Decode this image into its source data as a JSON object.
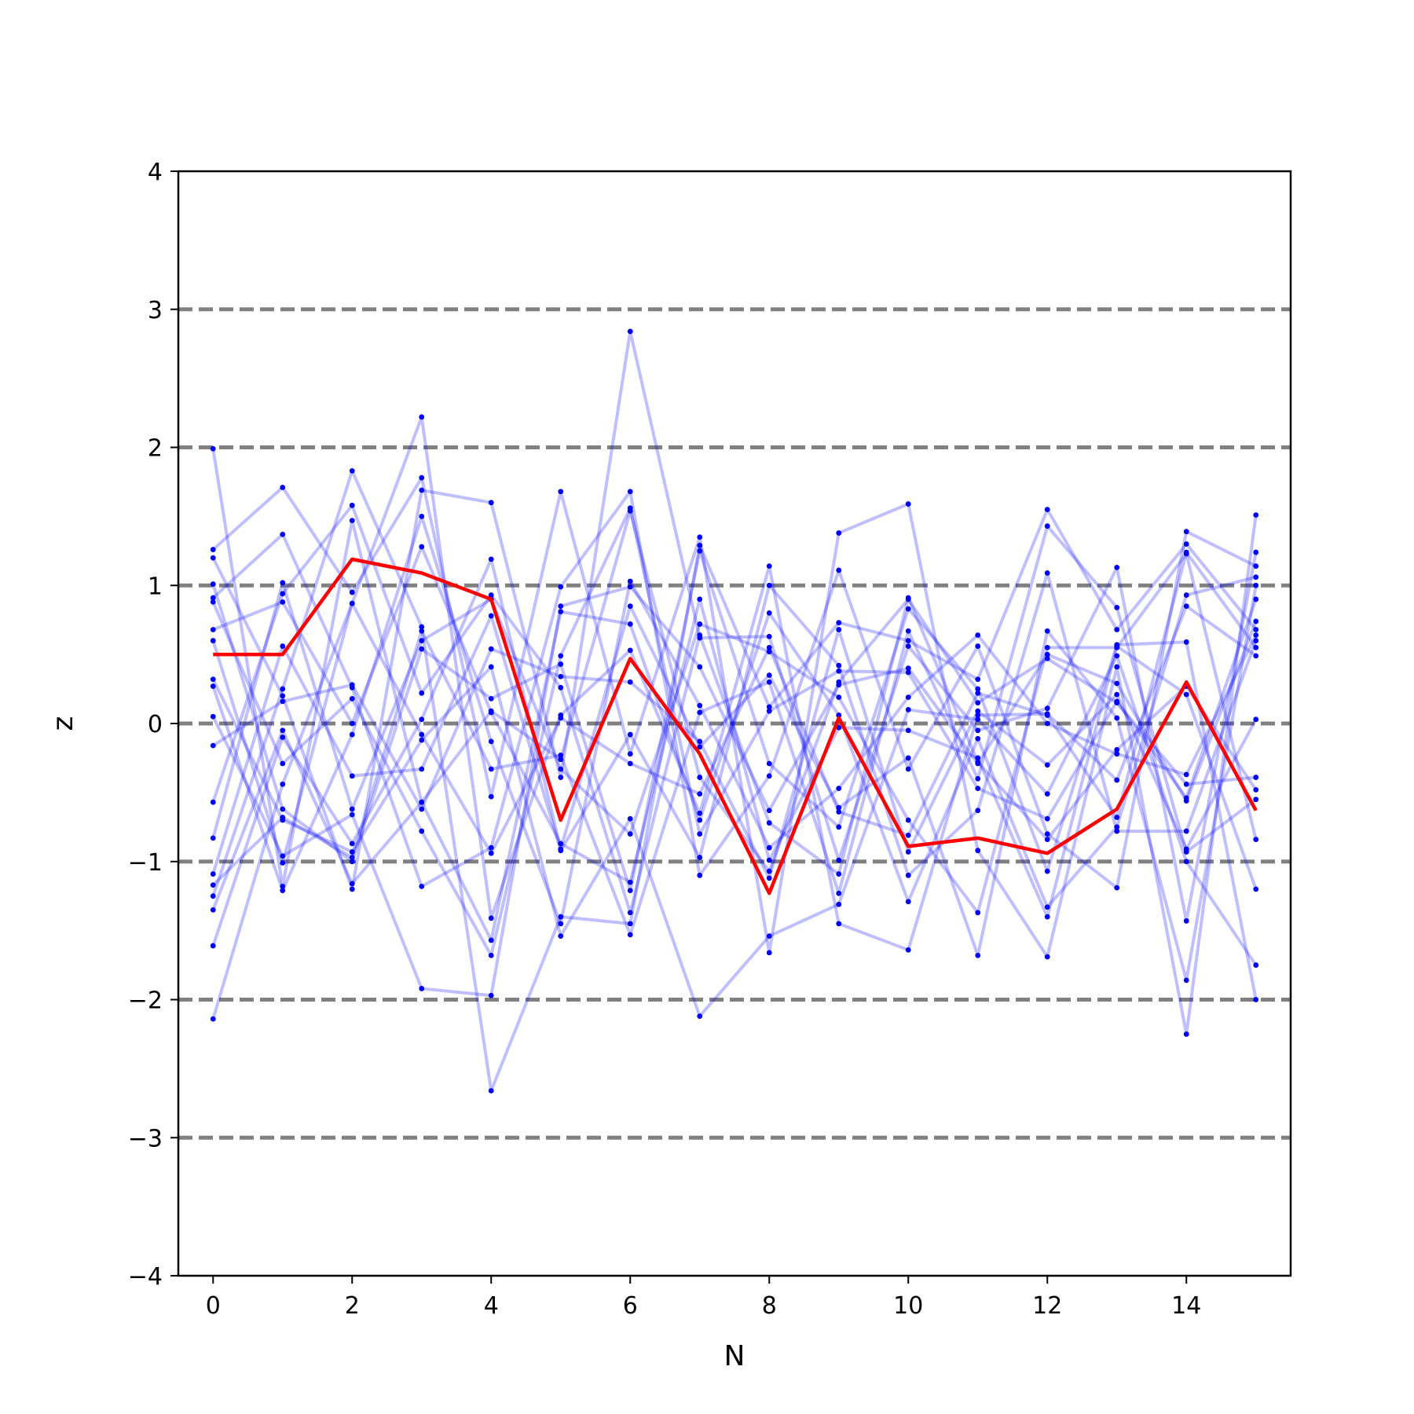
{
  "chart_data": {
    "type": "line",
    "title": "",
    "xlabel": "N",
    "ylabel": "z",
    "xlim": [
      -0.5,
      15.5
    ],
    "ylim": [
      -4,
      4
    ],
    "xticks": [
      "0",
      "2",
      "4",
      "6",
      "8",
      "10",
      "12",
      "14"
    ],
    "yticks": [
      "−4",
      "−3",
      "−2",
      "−1",
      "0",
      "1",
      "2",
      "3",
      "4"
    ],
    "reference_lines": [
      -3,
      -2,
      -1,
      0,
      1,
      2,
      3
    ],
    "grid": false,
    "legend": "none",
    "colors": {
      "traces": "#0000ff",
      "mean": "#ff0000",
      "reference": "#808080"
    },
    "x": [
      0,
      1,
      2,
      3,
      4,
      5,
      6,
      7,
      8,
      9,
      10,
      11,
      12,
      13,
      14,
      15
    ],
    "mean_series": [
      0.5,
      0.5,
      1.19,
      1.09,
      0.9,
      -0.7,
      0.47,
      -0.22,
      -1.23,
      0.04,
      -0.89,
      -0.83,
      -0.94,
      -0.62,
      0.3,
      -0.63
    ],
    "series": [
      [
        1.99,
        -1.18,
        1.47,
        -0.57,
        0.09,
        -0.26,
        1.54,
        -0.39,
        -1.07,
        0.3,
        0.9,
        0.15,
        0.47,
        0.15,
        -0.44,
        -0.39
      ],
      [
        1.26,
        1.71,
        0.95,
        1.78,
        -0.53,
        1.68,
        -0.22,
        1.35,
        -1.66,
        1.38,
        1.59,
        -0.92,
        -1.69,
        0.41,
        -2.25,
        1.51
      ],
      [
        1.2,
        0.2,
        -1.2,
        1.69,
        1.6,
        -0.39,
        2.84,
        0.62,
        0.63,
        -0.99,
        0.56,
        -0.05,
        0.11,
        1.13,
        -1.43,
        1.24
      ],
      [
        0.91,
        1.37,
        0.26,
        -1.18,
        -0.9,
        0.99,
        1.68,
        -1.1,
        -0.38,
        1.11,
        -0.33,
        0.56,
        -0.8,
        -1.19,
        1.39,
        1.14
      ],
      [
        -1.25,
        0.25,
        1.83,
        0.7,
        -2.66,
        -1.4,
        -1.45,
        1.29,
        0.12,
        0.73,
        0.6,
        0.32,
        1.55,
        0.68,
        1.3,
        0.68
      ],
      [
        -2.14,
        -0.44,
        0.87,
        2.22,
        -1.41,
        0.06,
        0.53,
        -0.65,
        1.14,
        -1.45,
        -1.64,
        0.06,
        0.07,
        -0.41,
        0.85,
        0.49
      ],
      [
        0.68,
        0.88,
        0.0,
        1.28,
        0.08,
        -0.87,
        -1.15,
        0.9,
        -0.99,
        -0.03,
        -0.05,
        -0.25,
        -1.4,
        0.56,
        0.21,
        -1.2
      ],
      [
        0.05,
        -0.96,
        -0.66,
        -1.92,
        -1.97,
        0.85,
        0.99,
        0.41,
        -0.63,
        0.28,
        0.4,
        -0.29,
        0.5,
        0.29,
        -0.56,
        0.74
      ],
      [
        -0.83,
        1.02,
        -0.62,
        0.6,
        0.9,
        -0.33,
        -0.8,
        0.72,
        0.52,
        0.19,
        -0.7,
        -1.37,
        0.55,
        0.55,
        1.23,
        -0.84
      ],
      [
        -1.61,
        -0.1,
        -0.87,
        0.03,
        1.19,
        -0.91,
        0.85,
        -0.17,
        0.35,
        -0.61,
        -0.25,
        -1.68,
        0.67,
        0.04,
        -1.86,
        1.0
      ],
      [
        1.01,
        -0.62,
        -1.0,
        0.54,
        0.18,
        0.43,
        -1.21,
        1.25,
        -0.29,
        -0.75,
        0.83,
        0.25,
        -1.07,
        0.57,
        0.59,
        -2.0
      ],
      [
        -1.09,
        0.56,
        -0.38,
        -0.33,
        0.78,
        -0.92,
        -0.08,
        -0.97,
        1.0,
        0.42,
        -1.1,
        -0.63,
        1.09,
        -0.78,
        -0.78,
        0.6
      ],
      [
        0.32,
        -0.7,
        -0.93,
        -0.12,
        0.41,
        -1.54,
        -0.69,
        -2.12,
        -1.54,
        -1.31,
        0.1,
        0.03,
        -0.51,
        0.49,
        -1.0,
        -1.75
      ],
      [
        0.88,
        -0.29,
        0.18,
        -0.78,
        -1.68,
        0.49,
        1.56,
        -0.8,
        0.09,
        0.38,
        0.37,
        -0.47,
        -0.69,
        0.16,
        -0.54,
        0.9
      ],
      [
        -0.57,
        0.94,
        1.58,
        0.22,
        0.93,
        0.26,
        -1.37,
        0.64,
        -0.72,
        -1.09,
        0.91,
        -0.28,
        -0.84,
        -0.19,
        0.27,
        -0.48
      ],
      [
        -1.35,
        -0.05,
        -1.16,
        -0.57,
        -1.57,
        0.81,
        0.72,
        -0.7,
        0.8,
        0.06,
        -1.29,
        -0.11,
        -1.33,
        -0.75,
        0.93,
        1.06
      ],
      [
        0.27,
        -1.21,
        -0.08,
        1.5,
        -0.13,
        -1.45,
        1.03,
        0.13,
        -0.9,
        -0.47,
        0.19,
        0.64,
        0.0,
        -0.22,
        -0.37,
        0.64
      ],
      [
        -0.16,
        0.16,
        0.28,
        -0.62,
        0.54,
        0.34,
        0.3,
        -0.13,
        -1.12,
        0.68,
        -0.93,
        0.09,
        -0.3,
        0.21,
        -0.91,
        0.03
      ],
      [
        -1.17,
        -0.68,
        -0.97,
        0.67,
        -0.33,
        -0.23,
        -1.53,
        0.08,
        0.3,
        -1.23,
        0.67,
        -0.4,
        1.43,
        0.84,
        -0.93,
        -0.55
      ],
      [
        0.6,
        -1.01,
        0.87,
        -0.08,
        -0.94,
        0.04,
        -0.29,
        -0.51,
        0.55,
        -0.64,
        -0.81,
        0.22,
        0.06,
        -0.68,
        1.24,
        0.55
      ]
    ]
  }
}
